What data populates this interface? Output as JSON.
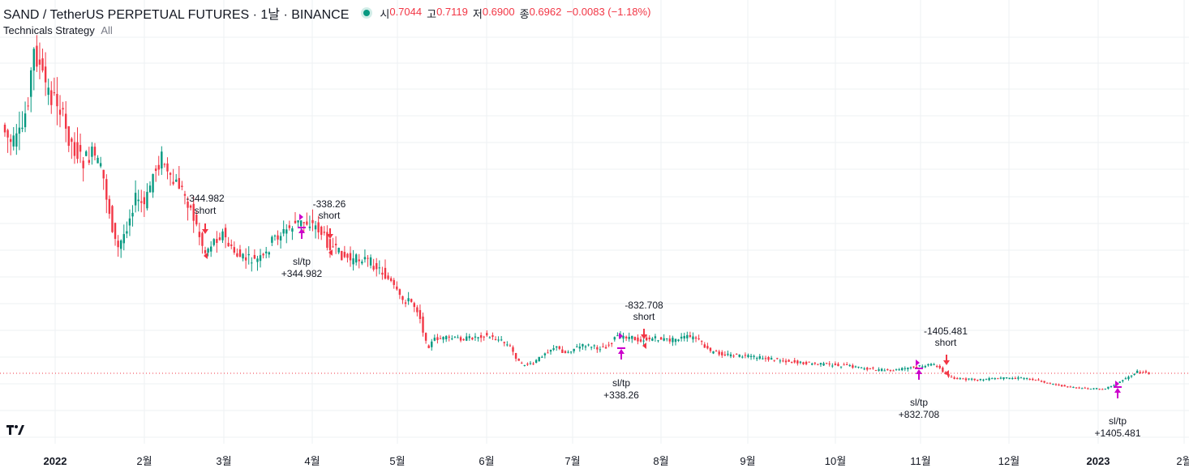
{
  "header": {
    "symbol_title": "SAND / TetherUS PERPETUAL FUTURES · 1날 · BINANCE",
    "ohlc": {
      "open_label": "시",
      "open": "0.7044",
      "high_label": "고",
      "high": "0.7119",
      "low_label": "저",
      "low": "0.6900",
      "close_label": "종",
      "close": "0.6962",
      "change": "−0.0083 (−1.18%)"
    }
  },
  "indicator": {
    "name": "Technicals Strategy",
    "filter": "All"
  },
  "colors": {
    "up": "#089981",
    "down": "#f23645",
    "entry_short": "#f23645",
    "exit": "#cc00cc",
    "grid": "#eef0f3"
  },
  "chart_data": {
    "type": "candlestick",
    "x_axis": {
      "ticks": [
        "2022",
        "2월",
        "3월",
        "4월",
        "5월",
        "6월",
        "7월",
        "8월",
        "9월",
        "10월",
        "11월",
        "12월",
        "2023",
        "2월"
      ]
    },
    "last_price": 0.6962,
    "trades": [
      {
        "side": "short",
        "entry_label": "short",
        "entry_pnl": "-344.982",
        "exit_label": "sl/tp",
        "exit_pnl": "+344.982"
      },
      {
        "side": "short",
        "entry_label": "short",
        "entry_pnl": "-338.26",
        "exit_label": "sl/tp",
        "exit_pnl": "+338.26"
      },
      {
        "side": "short",
        "entry_label": "short",
        "entry_pnl": "-832.708",
        "exit_label": "sl/tp",
        "exit_pnl": "+832.708"
      },
      {
        "side": "short",
        "entry_label": "short",
        "entry_pnl": "-1405.481",
        "exit_label": "sl/tp",
        "exit_pnl": "+1405.481"
      }
    ]
  }
}
